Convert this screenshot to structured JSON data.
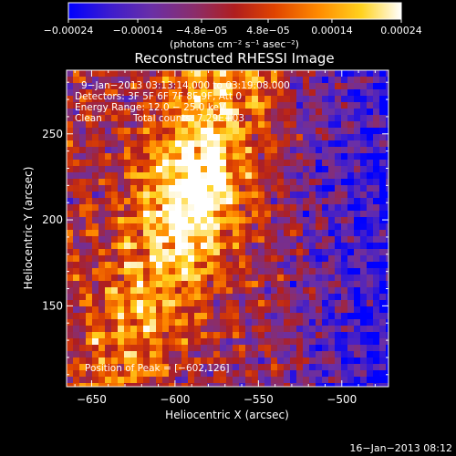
{
  "chart_data": {
    "type": "heatmap",
    "title": "Reconstructed RHESSI Image",
    "xlabel": "Heliocentric X (arcsec)",
    "ylabel": "Heliocentric Y (arcsec)",
    "xlim": [
      -665,
      -472
    ],
    "ylim": [
      103,
      287
    ],
    "xticks": [
      -650,
      -600,
      -550,
      -500
    ],
    "xtick_labels": [
      "−650",
      "−600",
      "−550",
      "−500"
    ],
    "yticks": [
      150,
      200,
      250
    ],
    "ytick_labels": [
      "150",
      "200",
      "250"
    ],
    "colorbar": {
      "min": -0.00024,
      "max": 0.00024,
      "ticks": [
        -0.00024,
        -0.00014,
        -4.8e-05,
        4.8e-05,
        0.00014,
        0.00024
      ],
      "tick_labels": [
        "−0.00024",
        "−0.00014",
        "−4.8e−05",
        "4.8e−05",
        "0.00014",
        "0.00024"
      ],
      "units": "(photons cm⁻² s⁻¹ asec⁻²)"
    },
    "peak": {
      "x": -602,
      "y": 126
    },
    "grid": false,
    "colors": {
      "background": "#000000",
      "foreground": "#ffffff",
      "colormap": [
        "#0000ff",
        "#3b1bd0",
        "#6a2fa6",
        "#8b2d6a",
        "#b01e1e",
        "#e04400",
        "#ff8a00",
        "#ffd21e",
        "#ffffff"
      ]
    }
  },
  "annotations": {
    "time_range": "9−Jan−2013 03:13:14.000 to 03:19:08.000",
    "detectors": "Detectors: 3F 5F 6F 7F 8F 9F, Att 0",
    "energy": "Energy Range: 12.0 − 25.0 keV",
    "clean": "Clean",
    "total_counts": "Total counts: 7.29E+03",
    "peak_position": "Position of Peak = [−602,126]"
  },
  "footer": {
    "timestamp": "16−Jan−2013 08:12"
  }
}
